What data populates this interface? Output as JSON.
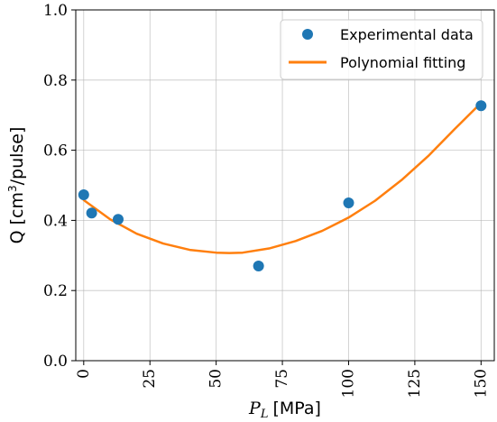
{
  "chart_data": {
    "type": "scatter",
    "x_range": [
      -3,
      155
    ],
    "y_range": [
      0.0,
      1.0
    ],
    "x_ticks": [
      0,
      25,
      50,
      75,
      100,
      125,
      150
    ],
    "y_ticks": [
      0.0,
      0.2,
      0.4,
      0.6,
      0.8,
      1.0
    ],
    "x_tick_labels": [
      "0",
      "25",
      "50",
      "75",
      "100",
      "125",
      "150"
    ],
    "y_tick_labels": [
      "0.0",
      "0.2",
      "0.4",
      "0.6",
      "0.8",
      "1.0"
    ],
    "grid": true,
    "xlabel": {
      "symbol": "P",
      "subscript": "L",
      "unit": "[MPa]"
    },
    "ylabel": {
      "prefix": "Q [cm",
      "superscript": "3",
      "suffix": "/pulse]"
    },
    "legend_position": "top-right",
    "series": [
      {
        "name": "Experimental data",
        "kind": "scatter",
        "color": "#1f77b4",
        "points": [
          {
            "x": 0,
            "y": 0.473
          },
          {
            "x": 3,
            "y": 0.421
          },
          {
            "x": 13,
            "y": 0.403
          },
          {
            "x": 66,
            "y": 0.27
          },
          {
            "x": 100,
            "y": 0.45
          },
          {
            "x": 150,
            "y": 0.727
          }
        ]
      },
      {
        "name": "Polynomial fitting",
        "kind": "line",
        "color": "#ff7f0e",
        "points": [
          {
            "x": 0,
            "y": 0.458
          },
          {
            "x": 10,
            "y": 0.403
          },
          {
            "x": 20,
            "y": 0.362
          },
          {
            "x": 30,
            "y": 0.334
          },
          {
            "x": 40,
            "y": 0.316
          },
          {
            "x": 50,
            "y": 0.308
          },
          {
            "x": 55,
            "y": 0.307
          },
          {
            "x": 60,
            "y": 0.308
          },
          {
            "x": 70,
            "y": 0.32
          },
          {
            "x": 80,
            "y": 0.341
          },
          {
            "x": 90,
            "y": 0.37
          },
          {
            "x": 100,
            "y": 0.408
          },
          {
            "x": 110,
            "y": 0.456
          },
          {
            "x": 120,
            "y": 0.515
          },
          {
            "x": 130,
            "y": 0.583
          },
          {
            "x": 140,
            "y": 0.66
          },
          {
            "x": 150,
            "y": 0.735
          }
        ]
      }
    ]
  }
}
